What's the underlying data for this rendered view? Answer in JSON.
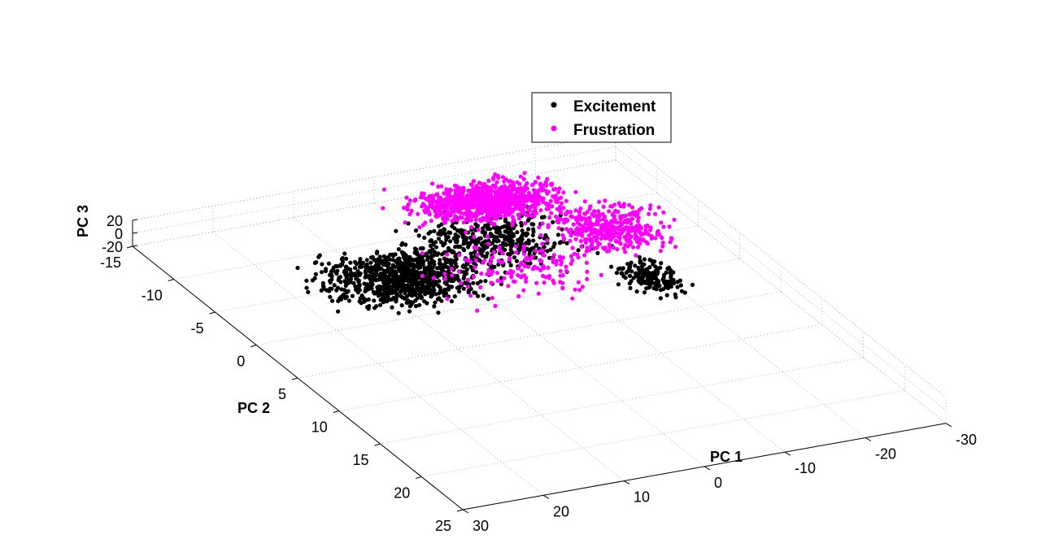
{
  "chart_data": {
    "type": "scatter",
    "dimensions": 3,
    "title": "",
    "xlabel": "PC 1",
    "ylabel": "PC 2",
    "zlabel": "PC 3",
    "xlim": [
      -30,
      30
    ],
    "ylim": [
      -15,
      25
    ],
    "zlim": [
      -20,
      20
    ],
    "x_ticks": [
      "-30",
      "-20",
      "-10",
      "0",
      "10",
      "20",
      "30"
    ],
    "y_ticks": [
      "-15",
      "-10",
      "-5",
      "0",
      "5",
      "10",
      "15",
      "20",
      "25"
    ],
    "z_ticks": [
      "20",
      "0",
      "-20"
    ],
    "grid": true,
    "legend_position": "top-center",
    "series": [
      {
        "name": "Excitement",
        "color": "#000000",
        "clusters": [
          {
            "x_range": [
              -5,
              22
            ],
            "y_range": [
              -9,
              2
            ],
            "z": 0,
            "density": "high"
          },
          {
            "x_range": [
              -20,
              8
            ],
            "y_range": [
              -12,
              0
            ],
            "z": 0,
            "density": "medium"
          },
          {
            "x_range": [
              -22,
              -12
            ],
            "y_range": [
              -2,
              6
            ],
            "z": 0,
            "density": "low"
          }
        ]
      },
      {
        "name": "Frustration",
        "color": "#ff00ff",
        "clusters": [
          {
            "x_range": [
              -22,
              2
            ],
            "y_range": [
              -15,
              -7
            ],
            "z": 0,
            "density": "high"
          },
          {
            "x_range": [
              -28,
              -10
            ],
            "y_range": [
              -10,
              0
            ],
            "z": 0,
            "density": "medium"
          },
          {
            "x_range": [
              -20,
              10
            ],
            "y_range": [
              -8,
              4
            ],
            "z": 0,
            "density": "low"
          }
        ]
      }
    ]
  }
}
